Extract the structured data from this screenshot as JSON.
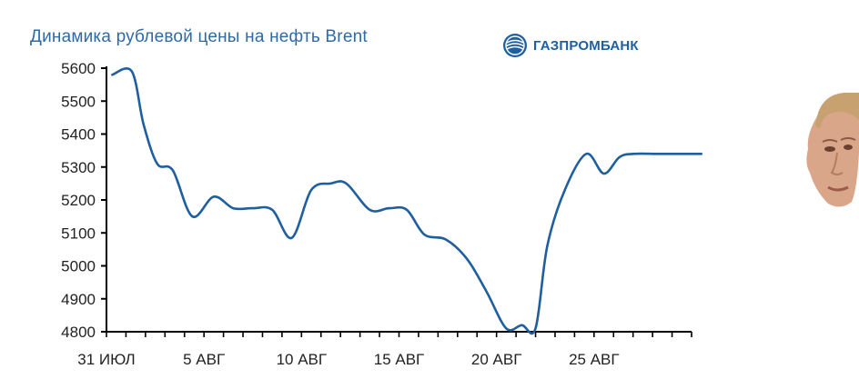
{
  "header": {
    "title": "Динамика рублевой цены на нефть Brent",
    "brand": "ГАЗПРОМБАНК",
    "brand_icon": "gazprombank-logo-icon",
    "colors": {
      "accent": "#1f5fa0",
      "line": "#1f5fa0",
      "title": "#2f6aa6"
    }
  },
  "chart_data": {
    "type": "line",
    "title": "Динамика рублевой цены на нефть Brent",
    "xlabel": "",
    "ylabel": "",
    "x_tick_labels": [
      {
        "day": 0,
        "label": "31 ИЮЛ"
      },
      {
        "day": 5,
        "label": "5 АВГ"
      },
      {
        "day": 10,
        "label": "10 АВГ"
      },
      {
        "day": 15,
        "label": "15 АВГ"
      },
      {
        "day": 20,
        "label": "20 АВГ"
      },
      {
        "day": 25,
        "label": "25 АВГ"
      }
    ],
    "xlim": [
      0,
      30
    ],
    "ylim": [
      4800,
      5600
    ],
    "yticks": [
      4800,
      4900,
      5000,
      5100,
      5200,
      5300,
      5400,
      5500,
      5600
    ],
    "grid": false,
    "series": [
      {
        "x": [
          0.3,
          1.3,
          1.9,
          2.6,
          3.4,
          4.4,
          5.5,
          6.5,
          7.5,
          8.5,
          9.5,
          10.5,
          11.5,
          12.3,
          13.5,
          14.5,
          15.4,
          16.3,
          17.4,
          18.5,
          19.5,
          20.5,
          21.3,
          22.0,
          22.6,
          23.5,
          24.6,
          25.5,
          26.3,
          27.0,
          28.3,
          29.3,
          30.5
        ],
        "values": [
          5580,
          5590,
          5430,
          5310,
          5290,
          5150,
          5210,
          5175,
          5175,
          5170,
          5085,
          5230,
          5250,
          5250,
          5170,
          5175,
          5170,
          5095,
          5080,
          5020,
          4920,
          4810,
          4820,
          4810,
          5060,
          5230,
          5340,
          5280,
          5330,
          5340,
          5340,
          5340,
          5340
        ]
      }
    ]
  }
}
